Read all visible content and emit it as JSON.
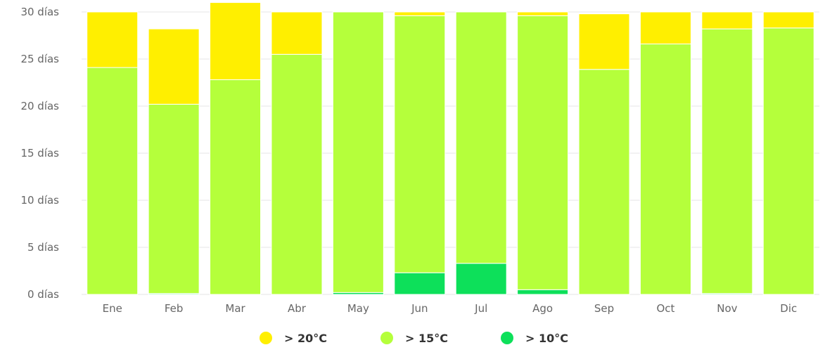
{
  "chart_data": {
    "type": "bar",
    "stacked": true,
    "title": "",
    "xlabel": "",
    "ylabel": "",
    "categories": [
      "Ene",
      "Feb",
      "Mar",
      "Abr",
      "May",
      "Jun",
      "Jul",
      "Ago",
      "Sep",
      "Oct",
      "Nov",
      "Dic"
    ],
    "y_ticks": [
      "0 días",
      "5 días",
      "10 días",
      "15 días",
      "20 días",
      "25 días",
      "30 días"
    ],
    "ylim": [
      0,
      30
    ],
    "grid": true,
    "legend_position": "bottom",
    "series": [
      {
        "name": "> 10°C",
        "color": "#0de05a",
        "values": [
          0.0,
          0.1,
          0.0,
          0.0,
          0.2,
          2.3,
          3.3,
          0.5,
          0.0,
          0.0,
          0.1,
          0.0
        ]
      },
      {
        "name": "> 15°C",
        "color": "#b5ff3b",
        "values": [
          24.1,
          20.1,
          22.8,
          25.5,
          29.8,
          27.3,
          26.7,
          29.1,
          23.9,
          26.6,
          28.1,
          28.3
        ]
      },
      {
        "name": "> 20°C",
        "color": "#ffef00",
        "values": [
          5.9,
          8.0,
          8.2,
          4.5,
          0.0,
          0.4,
          0.0,
          0.4,
          5.9,
          3.4,
          1.8,
          1.7
        ]
      }
    ],
    "legend_order": [
      "> 20°C",
      "> 15°C",
      "> 10°C"
    ]
  }
}
